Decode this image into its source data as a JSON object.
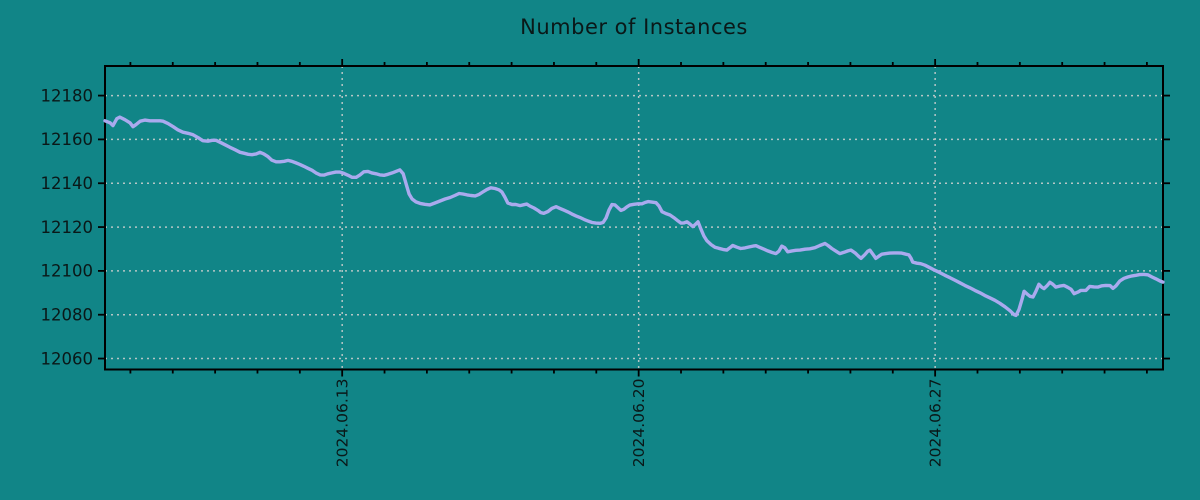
{
  "chart_data": {
    "type": "line",
    "title": "Number of Instances",
    "xlabel": "",
    "ylabel": "",
    "legend": "none",
    "grid": "dotted",
    "x_unit": "days from start of visible window",
    "xlim": [
      0,
      24.98
    ],
    "ylim": [
      12055,
      12193.5
    ],
    "y_ticks": [
      12060,
      12080,
      12100,
      12120,
      12140,
      12160,
      12180
    ],
    "x_major_ticks": [
      {
        "day": 5.6,
        "label": "2024.06.13"
      },
      {
        "day": 12.6,
        "label": "2024.06.20"
      },
      {
        "day": 19.6,
        "label": "2024.06.27"
      }
    ],
    "x_minor_tick_offset": 0.6,
    "x_minor_tick_interval": 1.0,
    "colors": {
      "background": "#118587",
      "line": "#aaaaee",
      "grid": "#b7c6c6",
      "axis": "#000000",
      "text": "#0a1818"
    },
    "series_name": "instances",
    "points": [
      [
        0,
        12168.5
      ],
      [
        0.12,
        12167.6
      ],
      [
        0.19,
        12166.3
      ],
      [
        0.28,
        12169.5
      ],
      [
        0.35,
        12170.2
      ],
      [
        0.47,
        12169
      ],
      [
        0.59,
        12167.6
      ],
      [
        0.66,
        12165.8
      ],
      [
        0.73,
        12166.7
      ],
      [
        0.83,
        12168.3
      ],
      [
        0.94,
        12168.8
      ],
      [
        1.06,
        12168.5
      ],
      [
        1.18,
        12168.5
      ],
      [
        1.3,
        12168.5
      ],
      [
        1.37,
        12168.3
      ],
      [
        1.49,
        12167.2
      ],
      [
        1.61,
        12165.8
      ],
      [
        1.72,
        12164.4
      ],
      [
        1.84,
        12163.3
      ],
      [
        1.96,
        12162.8
      ],
      [
        2.08,
        12162.1
      ],
      [
        2.2,
        12160.8
      ],
      [
        2.31,
        12159.4
      ],
      [
        2.43,
        12159.2
      ],
      [
        2.53,
        12159.6
      ],
      [
        2.62,
        12159.6
      ],
      [
        2.72,
        12158.7
      ],
      [
        2.83,
        12157.6
      ],
      [
        2.95,
        12156.4
      ],
      [
        3.07,
        12155.3
      ],
      [
        3.19,
        12154.1
      ],
      [
        3.28,
        12153.7
      ],
      [
        3.38,
        12153.2
      ],
      [
        3.47,
        12153
      ],
      [
        3.57,
        12153.4
      ],
      [
        3.66,
        12154.1
      ],
      [
        3.75,
        12153.4
      ],
      [
        3.85,
        12152.1
      ],
      [
        3.94,
        12150.5
      ],
      [
        4.04,
        12149.8
      ],
      [
        4.13,
        12149.8
      ],
      [
        4.23,
        12150
      ],
      [
        4.32,
        12150.4
      ],
      [
        4.41,
        12150
      ],
      [
        4.51,
        12149.3
      ],
      [
        4.6,
        12148.6
      ],
      [
        4.7,
        12147.7
      ],
      [
        4.79,
        12146.8
      ],
      [
        4.89,
        12145.9
      ],
      [
        4.98,
        12144.7
      ],
      [
        5.08,
        12143.8
      ],
      [
        5.17,
        12143.7
      ],
      [
        5.26,
        12144.3
      ],
      [
        5.36,
        12144.7
      ],
      [
        5.45,
        12145.1
      ],
      [
        5.55,
        12145.1
      ],
      [
        5.64,
        12144.5
      ],
      [
        5.74,
        12143.6
      ],
      [
        5.83,
        12142.7
      ],
      [
        5.93,
        12142.7
      ],
      [
        6.02,
        12143.8
      ],
      [
        6.11,
        12145.2
      ],
      [
        6.21,
        12145.4
      ],
      [
        6.3,
        12144.7
      ],
      [
        6.4,
        12144.3
      ],
      [
        6.49,
        12143.8
      ],
      [
        6.59,
        12143.6
      ],
      [
        6.68,
        12144.1
      ],
      [
        6.78,
        12144.7
      ],
      [
        6.87,
        12145.4
      ],
      [
        6.96,
        12146.1
      ],
      [
        7.04,
        12144.3
      ],
      [
        7.11,
        12139.7
      ],
      [
        7.18,
        12135.1
      ],
      [
        7.25,
        12132.8
      ],
      [
        7.34,
        12131.5
      ],
      [
        7.44,
        12130.8
      ],
      [
        7.55,
        12130.4
      ],
      [
        7.67,
        12130.1
      ],
      [
        7.79,
        12131
      ],
      [
        7.91,
        12131.9
      ],
      [
        8.03,
        12132.8
      ],
      [
        8.15,
        12133.5
      ],
      [
        8.26,
        12134.4
      ],
      [
        8.36,
        12135.3
      ],
      [
        8.45,
        12135.1
      ],
      [
        8.55,
        12134.7
      ],
      [
        8.64,
        12134.4
      ],
      [
        8.74,
        12134.2
      ],
      [
        8.83,
        12134.9
      ],
      [
        8.92,
        12136
      ],
      [
        9.02,
        12137.2
      ],
      [
        9.11,
        12137.9
      ],
      [
        9.21,
        12137.6
      ],
      [
        9.3,
        12137
      ],
      [
        9.37,
        12136
      ],
      [
        9.44,
        12133.7
      ],
      [
        9.51,
        12131
      ],
      [
        9.61,
        12130.3
      ],
      [
        9.7,
        12130.3
      ],
      [
        9.8,
        12129.8
      ],
      [
        9.89,
        12130.2
      ],
      [
        9.96,
        12130.5
      ],
      [
        10.03,
        12129.6
      ],
      [
        10.13,
        12128.7
      ],
      [
        10.22,
        12127.6
      ],
      [
        10.29,
        12126.6
      ],
      [
        10.36,
        12126.3
      ],
      [
        10.46,
        12127.1
      ],
      [
        10.55,
        12128.5
      ],
      [
        10.65,
        12129.3
      ],
      [
        10.74,
        12128.5
      ],
      [
        10.84,
        12127.7
      ],
      [
        10.93,
        12126.9
      ],
      [
        11.02,
        12126
      ],
      [
        11.12,
        12125.1
      ],
      [
        11.21,
        12124.4
      ],
      [
        11.31,
        12123.5
      ],
      [
        11.4,
        12122.8
      ],
      [
        11.5,
        12122.1
      ],
      [
        11.59,
        12121.8
      ],
      [
        11.69,
        12121.7
      ],
      [
        11.76,
        12122.1
      ],
      [
        11.83,
        12124.1
      ],
      [
        11.9,
        12127.8
      ],
      [
        11.97,
        12130.3
      ],
      [
        12.04,
        12130.1
      ],
      [
        12.11,
        12128.9
      ],
      [
        12.18,
        12127.6
      ],
      [
        12.25,
        12128.1
      ],
      [
        12.32,
        12129.2
      ],
      [
        12.39,
        12130
      ],
      [
        12.49,
        12130.4
      ],
      [
        12.58,
        12130.6
      ],
      [
        12.68,
        12130.6
      ],
      [
        12.75,
        12131.2
      ],
      [
        12.82,
        12131.6
      ],
      [
        12.91,
        12131.4
      ],
      [
        13.01,
        12131.1
      ],
      [
        13.08,
        12129.6
      ],
      [
        13.15,
        12127
      ],
      [
        13.24,
        12126.2
      ],
      [
        13.34,
        12125.5
      ],
      [
        13.43,
        12124.3
      ],
      [
        13.53,
        12122.8
      ],
      [
        13.6,
        12121.8
      ],
      [
        13.67,
        12121.9
      ],
      [
        13.74,
        12122.4
      ],
      [
        13.81,
        12121.4
      ],
      [
        13.88,
        12120.2
      ],
      [
        13.95,
        12121.4
      ],
      [
        14,
        12122.4
      ],
      [
        14.07,
        12119.1
      ],
      [
        14.14,
        12115.9
      ],
      [
        14.21,
        12113.8
      ],
      [
        14.31,
        12112
      ],
      [
        14.4,
        12110.8
      ],
      [
        14.49,
        12110.3
      ],
      [
        14.59,
        12109.8
      ],
      [
        14.68,
        12109.5
      ],
      [
        14.75,
        12110.5
      ],
      [
        14.82,
        12111.6
      ],
      [
        14.92,
        12110.8
      ],
      [
        15.01,
        12110.2
      ],
      [
        15.11,
        12110.5
      ],
      [
        15.2,
        12110.9
      ],
      [
        15.3,
        12111.3
      ],
      [
        15.37,
        12111.5
      ],
      [
        15.46,
        12110.7
      ],
      [
        15.56,
        12109.9
      ],
      [
        15.65,
        12109.1
      ],
      [
        15.75,
        12108.4
      ],
      [
        15.84,
        12107.9
      ],
      [
        15.91,
        12109
      ],
      [
        15.98,
        12111.3
      ],
      [
        16.05,
        12110.6
      ],
      [
        16.12,
        12108.7
      ],
      [
        16.22,
        12109.1
      ],
      [
        16.31,
        12109.4
      ],
      [
        16.41,
        12109.5
      ],
      [
        16.53,
        12109.9
      ],
      [
        16.64,
        12110.1
      ],
      [
        16.76,
        12110.6
      ],
      [
        16.88,
        12111.6
      ],
      [
        17,
        12112.5
      ],
      [
        17.07,
        12111.6
      ],
      [
        17.16,
        12110.2
      ],
      [
        17.26,
        12109
      ],
      [
        17.35,
        12107.9
      ],
      [
        17.45,
        12108.5
      ],
      [
        17.54,
        12109.1
      ],
      [
        17.61,
        12109.5
      ],
      [
        17.71,
        12108.2
      ],
      [
        17.78,
        12106.9
      ],
      [
        17.85,
        12105.7
      ],
      [
        17.94,
        12107.4
      ],
      [
        18.01,
        12109
      ],
      [
        18.06,
        12109.5
      ],
      [
        18.13,
        12107.6
      ],
      [
        18.2,
        12105.7
      ],
      [
        18.27,
        12106.7
      ],
      [
        18.34,
        12107.6
      ],
      [
        18.44,
        12107.9
      ],
      [
        18.53,
        12108.1
      ],
      [
        18.63,
        12108.2
      ],
      [
        18.72,
        12108.2
      ],
      [
        18.81,
        12108.1
      ],
      [
        18.91,
        12107.6
      ],
      [
        18.98,
        12107.3
      ],
      [
        19.03,
        12105.8
      ],
      [
        19.07,
        12104
      ],
      [
        19.17,
        12103.5
      ],
      [
        19.26,
        12103.3
      ],
      [
        19.36,
        12102.6
      ],
      [
        19.48,
        12101.4
      ],
      [
        19.59,
        12100.3
      ],
      [
        19.71,
        12099.2
      ],
      [
        19.83,
        12098
      ],
      [
        19.95,
        12096.9
      ],
      [
        20.07,
        12095.7
      ],
      [
        20.18,
        12094.6
      ],
      [
        20.3,
        12093.4
      ],
      [
        20.42,
        12092.3
      ],
      [
        20.54,
        12091.1
      ],
      [
        20.66,
        12090
      ],
      [
        20.77,
        12088.8
      ],
      [
        20.89,
        12087.7
      ],
      [
        21.01,
        12086.6
      ],
      [
        21.13,
        12085.2
      ],
      [
        21.25,
        12083.6
      ],
      [
        21.37,
        12081.8
      ],
      [
        21.46,
        12080.1
      ],
      [
        21.51,
        12079.7
      ],
      [
        21.58,
        12082.4
      ],
      [
        21.65,
        12087
      ],
      [
        21.7,
        12090.7
      ],
      [
        21.77,
        12089.5
      ],
      [
        21.84,
        12088.4
      ],
      [
        21.91,
        12088.1
      ],
      [
        21.98,
        12090.7
      ],
      [
        22.05,
        12093.9
      ],
      [
        22.12,
        12092.5
      ],
      [
        22.17,
        12091.9
      ],
      [
        22.24,
        12093.2
      ],
      [
        22.31,
        12094.8
      ],
      [
        22.38,
        12093.9
      ],
      [
        22.45,
        12092.6
      ],
      [
        22.55,
        12093.1
      ],
      [
        22.64,
        12093.4
      ],
      [
        22.73,
        12092.5
      ],
      [
        22.81,
        12091.6
      ],
      [
        22.88,
        12089.6
      ],
      [
        22.97,
        12090.3
      ],
      [
        23.04,
        12091.1
      ],
      [
        23.16,
        12091.1
      ],
      [
        23.25,
        12092.9
      ],
      [
        23.35,
        12092.7
      ],
      [
        23.44,
        12092.6
      ],
      [
        23.54,
        12093.2
      ],
      [
        23.63,
        12093.4
      ],
      [
        23.73,
        12093.3
      ],
      [
        23.8,
        12092
      ],
      [
        23.87,
        12093.2
      ],
      [
        23.96,
        12095.4
      ],
      [
        24.06,
        12096.6
      ],
      [
        24.15,
        12097.2
      ],
      [
        24.25,
        12097.7
      ],
      [
        24.34,
        12098
      ],
      [
        24.43,
        12098.3
      ],
      [
        24.53,
        12098.4
      ],
      [
        24.62,
        12098.2
      ],
      [
        24.72,
        12097.2
      ],
      [
        24.81,
        12096.4
      ],
      [
        24.91,
        12095.4
      ],
      [
        24.98,
        12094.9
      ]
    ]
  }
}
